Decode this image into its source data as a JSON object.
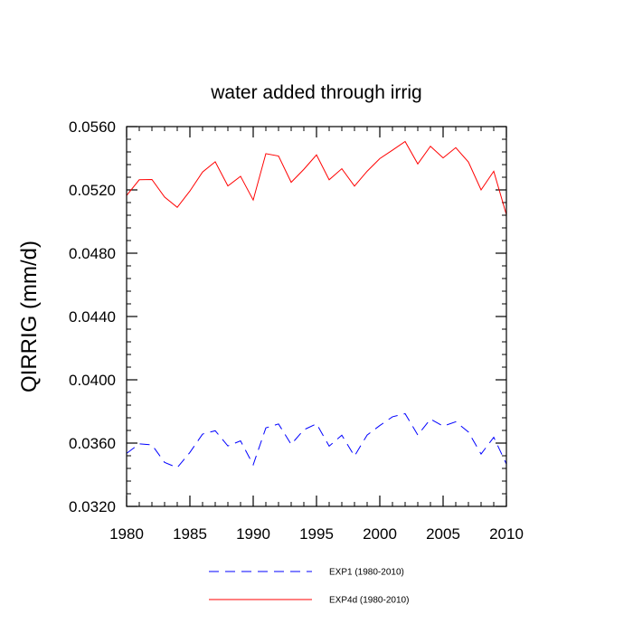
{
  "chart_data": {
    "type": "line",
    "title": "water added through irrig",
    "xlabel": "",
    "ylabel": "QIRRIG  (mm/d)",
    "xlim": [
      1980,
      2010
    ],
    "ylim": [
      0.032,
      0.056
    ],
    "xticks": [
      1980,
      1985,
      1990,
      1995,
      2000,
      2005,
      2010
    ],
    "xtick_labels": [
      "1980",
      "1985",
      "1990",
      "1995",
      "2000",
      "2005",
      "2010"
    ],
    "yticks": [
      0.032,
      0.036,
      0.04,
      0.044,
      0.048,
      0.052,
      0.056
    ],
    "ytick_labels": [
      "0.0320",
      "0.0360",
      "0.0400",
      "0.0440",
      "0.0480",
      "0.0520",
      "0.0560"
    ],
    "grid": false,
    "legend_position": "bottom",
    "series": [
      {
        "name": "EXP1 (1980-2010)",
        "color": "#0000ff",
        "style": "dashed",
        "x": [
          1980,
          1981,
          1982,
          1983,
          1984,
          1985,
          1986,
          1987,
          1988,
          1989,
          1990,
          1991,
          1992,
          1993,
          1994,
          1995,
          1996,
          1997,
          1998,
          1999,
          2000,
          2001,
          2002,
          2003,
          2004,
          2005,
          2006,
          2007,
          2008,
          2009,
          2010
        ],
        "y": [
          0.03535,
          0.03595,
          0.03589,
          0.03478,
          0.03445,
          0.03541,
          0.03657,
          0.03678,
          0.03582,
          0.03614,
          0.03463,
          0.03696,
          0.03721,
          0.03592,
          0.03684,
          0.03722,
          0.03581,
          0.0365,
          0.03518,
          0.03651,
          0.03711,
          0.03766,
          0.03786,
          0.03651,
          0.03752,
          0.03707,
          0.03735,
          0.0367,
          0.03531,
          0.03637,
          0.03468
        ]
      },
      {
        "name": "EXP4d (1980-2010)",
        "color": "#ff0000",
        "style": "solid",
        "x": [
          1980,
          1981,
          1982,
          1983,
          1984,
          1985,
          1986,
          1987,
          1988,
          1989,
          1990,
          1991,
          1992,
          1993,
          1994,
          1995,
          1996,
          1997,
          1998,
          1999,
          2000,
          2001,
          2002,
          2003,
          2004,
          2005,
          2006,
          2007,
          2008,
          2009,
          2010
        ],
        "y": [
          0.05165,
          0.05264,
          0.05266,
          0.05155,
          0.0509,
          0.05193,
          0.05313,
          0.05378,
          0.05225,
          0.05286,
          0.05136,
          0.05429,
          0.05414,
          0.05248,
          0.0533,
          0.05421,
          0.05264,
          0.05334,
          0.05224,
          0.05318,
          0.05398,
          0.05451,
          0.05506,
          0.05364,
          0.05476,
          0.05402,
          0.05467,
          0.05376,
          0.052,
          0.05318,
          0.05043
        ]
      }
    ]
  }
}
